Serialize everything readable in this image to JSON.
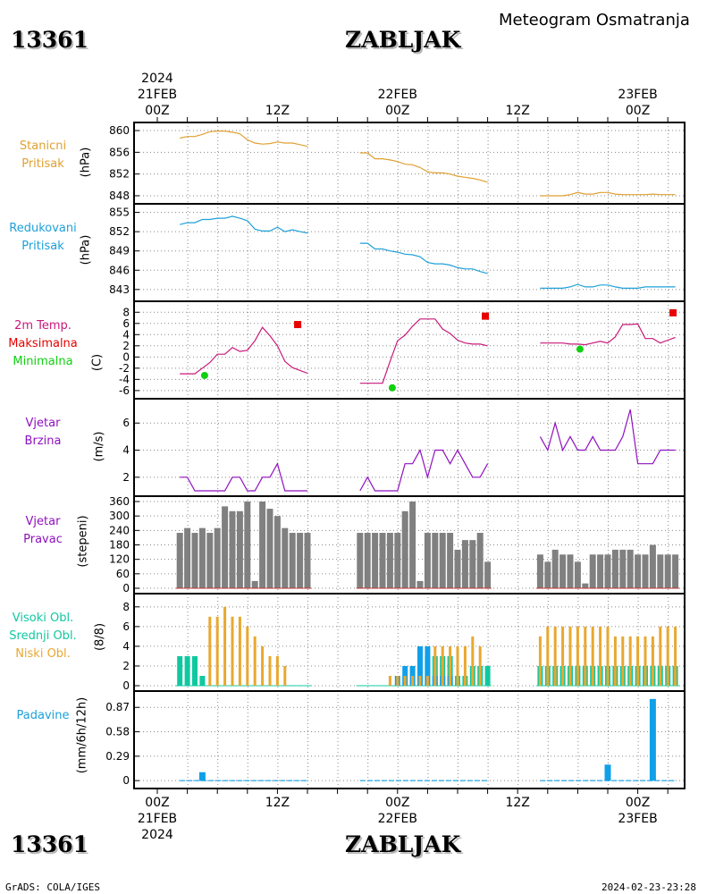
{
  "header": {
    "station_id": "13361",
    "station_name": "ZABLJAK",
    "subtitle": "Meteogram Osmatranja",
    "year": "2024"
  },
  "footer": {
    "left": "GrADS: COLA/IGES",
    "right": "2024-02-23-23:28"
  },
  "time_axis": {
    "top_dates": [
      "21FEB",
      "22FEB",
      "23FEB"
    ],
    "hour_labels": [
      "00Z",
      "12Z",
      "00Z",
      "12Z",
      "00Z",
      "12Z"
    ],
    "bottom_dates": [
      "21FEB",
      "22FEB",
      "23FEB"
    ]
  },
  "colors": {
    "pressure_station": "#e0a030",
    "pressure_reduced": "#1ea0d8",
    "temperature": "#c8187a",
    "temp_max": "#e80000",
    "temp_min": "#10d010",
    "wind": "#9010c0",
    "wind_dir_bar": "#808080",
    "high_cloud": "#10c8a0",
    "mid_cloud": "#10a0e8",
    "low_cloud": "#e8a830",
    "precip": "#10a0e8"
  },
  "panels": {
    "station_pressure": {
      "label1": "Stanicni",
      "label2": "Pritisak",
      "unit": "(hPa)"
    },
    "reduced_pressure": {
      "label1": "Redukovani",
      "label2": "Pritisak",
      "unit": "(hPa)"
    },
    "temperature": {
      "label1": "2m Temp.",
      "label2": "Maksimalna",
      "label3": "Minimalna",
      "unit": "(C)"
    },
    "wind_speed": {
      "label1": "Vjetar",
      "label2": "Brzina",
      "unit": "(m/s)"
    },
    "wind_direction": {
      "label1": "Vjetar",
      "label2": "Pravac",
      "unit": "(stepeni)"
    },
    "clouds": {
      "label1": "Visoki Obl.",
      "label2": "Srednji Obl.",
      "label3": "Niski Obl.",
      "unit": "(8/8)"
    },
    "precipitation": {
      "label1": "Padavine",
      "unit": "(mm/6h/12h)"
    }
  },
  "chart_data": [
    {
      "type": "line",
      "name": "station_pressure",
      "ylim": [
        847.5,
        860.5
      ],
      "yticks": [
        848,
        852,
        856,
        860
      ],
      "series": [
        {
          "x": [
            3,
            4,
            5,
            6,
            7,
            8,
            9,
            10,
            11,
            12,
            13,
            14,
            15,
            16,
            17,
            18,
            19,
            20
          ],
          "y": [
            858.6,
            858.9,
            858.9,
            859.3,
            859.8,
            859.9,
            859.9,
            859.7,
            859.4,
            858.3,
            857.7,
            857.5,
            857.6,
            857.9,
            857.7,
            857.7,
            857.4,
            857.1
          ]
        },
        {
          "x": [
            27,
            28,
            29,
            30,
            31,
            32,
            33,
            34,
            35,
            36,
            37,
            38,
            39,
            40,
            41,
            42,
            43,
            44
          ],
          "y": [
            855.9,
            855.9,
            854.8,
            854.8,
            854.6,
            854.3,
            853.8,
            853.7,
            853.2,
            852.4,
            852.2,
            852.2,
            852.0,
            851.6,
            851.4,
            851.2,
            850.9,
            850.5
          ]
        },
        {
          "x": [
            51,
            52,
            53,
            54,
            55,
            56,
            57,
            58,
            59,
            60,
            61,
            62,
            63,
            64,
            65,
            66,
            67,
            68,
            69
          ],
          "y": [
            848.0,
            848.0,
            848.0,
            848.0,
            848.2,
            848.6,
            848.3,
            848.3,
            848.6,
            848.6,
            848.3,
            848.2,
            848.2,
            848.2,
            848.2,
            848.3,
            848.2,
            848.2,
            848.2
          ]
        }
      ]
    },
    {
      "type": "line",
      "name": "reduced_pressure",
      "ylim": [
        842,
        855.5
      ],
      "yticks": [
        843,
        846,
        849,
        852,
        855
      ],
      "series": [
        {
          "x": [
            3,
            4,
            5,
            6,
            7,
            8,
            9,
            10,
            11,
            12,
            13,
            14,
            15,
            16,
            17,
            18,
            19,
            20
          ],
          "y": [
            853.1,
            853.4,
            853.4,
            853.9,
            853.9,
            854.1,
            854.1,
            854.4,
            854.1,
            853.7,
            852.4,
            852.1,
            852.1,
            852.7,
            852.0,
            852.3,
            852.0,
            851.8
          ]
        },
        {
          "x": [
            27,
            28,
            29,
            30,
            31,
            32,
            33,
            34,
            35,
            36,
            37,
            38,
            39,
            40,
            41,
            42,
            43,
            44
          ],
          "y": [
            850.2,
            850.2,
            849.3,
            849.3,
            849.0,
            848.8,
            848.5,
            848.4,
            848.1,
            847.2,
            847.0,
            847.0,
            846.8,
            846.4,
            846.2,
            846.2,
            845.8,
            845.5
          ]
        },
        {
          "x": [
            51,
            52,
            53,
            54,
            55,
            56,
            57,
            58,
            59,
            60,
            61,
            62,
            63,
            64,
            65,
            66,
            67,
            68,
            69
          ],
          "y": [
            843.2,
            843.2,
            843.2,
            843.2,
            843.4,
            843.8,
            843.4,
            843.4,
            843.7,
            843.7,
            843.4,
            843.2,
            843.2,
            843.2,
            843.4,
            843.4,
            843.4,
            843.4,
            843.4
          ]
        }
      ]
    },
    {
      "type": "line",
      "name": "temperature",
      "ylim": [
        -6.5,
        9
      ],
      "yticks": [
        -6,
        -4,
        -2,
        0,
        2,
        4,
        6,
        8
      ],
      "series": [
        {
          "name": "temp",
          "x": [
            3,
            4,
            5,
            6,
            7,
            8,
            9,
            10,
            11,
            12,
            13,
            14,
            15,
            16,
            17,
            18,
            19,
            20
          ],
          "y": [
            -3.0,
            -3.0,
            -3.0,
            -2.0,
            -1.0,
            0.5,
            0.5,
            1.7,
            1.0,
            1.2,
            2.9,
            5.3,
            3.8,
            2.0,
            -0.8,
            -1.9,
            -2.4,
            -2.9
          ]
        },
        {
          "name": "temp",
          "x": [
            27,
            28,
            29,
            30,
            31,
            32,
            33,
            34,
            35,
            36,
            37,
            38,
            39,
            40,
            41,
            42,
            43,
            44
          ],
          "y": [
            -4.7,
            -4.7,
            -4.7,
            -4.7,
            -0.8,
            2.9,
            3.9,
            5.5,
            6.8,
            6.8,
            6.8,
            5.0,
            4.2,
            3.0,
            2.5,
            2.3,
            2.3,
            2.0
          ]
        },
        {
          "name": "temp",
          "x": [
            51,
            52,
            53,
            54,
            55,
            56,
            57,
            58,
            59,
            60,
            61,
            62,
            63,
            64,
            65,
            66,
            67,
            68,
            69
          ],
          "y": [
            2.5,
            2.5,
            2.5,
            2.5,
            2.3,
            2.3,
            2.2,
            2.5,
            2.8,
            2.5,
            3.6,
            5.8,
            5.8,
            5.9,
            3.3,
            3.3,
            2.5,
            3.0,
            3.5
          ]
        }
      ],
      "max_points": [
        {
          "x": 18.7,
          "y": 5.8
        },
        {
          "x": 43.7,
          "y": 7.3
        },
        {
          "x": 68.7,
          "y": 7.9
        }
      ],
      "min_points": [
        {
          "x": 6.3,
          "y": -3.3
        },
        {
          "x": 31.3,
          "y": -5.5
        },
        {
          "x": 56.3,
          "y": 1.4
        }
      ]
    },
    {
      "type": "line",
      "name": "wind_speed",
      "ylim": [
        1,
        7.4
      ],
      "yticks": [
        2,
        4,
        6
      ],
      "series": [
        {
          "x": [
            3,
            4,
            5,
            6,
            7,
            8,
            9,
            10,
            11,
            12,
            13,
            14,
            15,
            16,
            17,
            18,
            19,
            20
          ],
          "y": [
            2,
            2,
            1,
            1,
            1,
            1,
            1,
            2,
            2,
            1,
            1,
            2,
            2,
            3,
            1,
            1,
            1,
            1
          ]
        },
        {
          "x": [
            27,
            28,
            29,
            30,
            31,
            32,
            33,
            34,
            35,
            36,
            37,
            38,
            39,
            40,
            41,
            42,
            43,
            44
          ],
          "y": [
            1,
            2,
            1,
            1,
            1,
            1,
            3,
            3,
            4,
            2,
            4,
            4,
            3,
            4,
            3,
            2,
            2,
            3
          ]
        },
        {
          "x": [
            51,
            52,
            53,
            54,
            55,
            56,
            57,
            58,
            59,
            60,
            61,
            62,
            63,
            64,
            65,
            66,
            67,
            68,
            69
          ],
          "y": [
            5,
            4,
            6,
            4,
            5,
            4,
            4,
            5,
            4,
            4,
            4,
            5,
            7,
            3,
            3,
            3,
            4,
            4,
            4
          ]
        }
      ]
    },
    {
      "type": "bar",
      "name": "wind_direction",
      "ylim": [
        0,
        360
      ],
      "yticks": [
        0,
        60,
        120,
        180,
        240,
        300,
        360
      ],
      "x": [
        3,
        4,
        5,
        6,
        7,
        8,
        9,
        10,
        11,
        12,
        13,
        14,
        15,
        16,
        17,
        18,
        19,
        20,
        27,
        28,
        29,
        30,
        31,
        32,
        33,
        34,
        35,
        36,
        37,
        38,
        39,
        40,
        41,
        42,
        43,
        44,
        51,
        52,
        53,
        54,
        55,
        56,
        57,
        58,
        59,
        60,
        61,
        62,
        63,
        64,
        65,
        66,
        67,
        68,
        69
      ],
      "values": [
        230,
        250,
        230,
        250,
        230,
        250,
        340,
        320,
        320,
        360,
        30,
        360,
        330,
        300,
        250,
        230,
        230,
        230,
        230,
        230,
        230,
        230,
        230,
        230,
        320,
        360,
        30,
        230,
        230,
        230,
        230,
        160,
        200,
        200,
        230,
        110,
        140,
        110,
        160,
        140,
        140,
        110,
        20,
        140,
        140,
        140,
        160,
        160,
        160,
        140,
        140,
        180,
        140,
        140,
        140
      ]
    },
    {
      "type": "bar",
      "name": "clouds",
      "ylim": [
        0,
        8.8
      ],
      "yticks": [
        0,
        2,
        4,
        6,
        8
      ],
      "x": [
        3,
        4,
        5,
        6,
        7,
        8,
        9,
        10,
        11,
        12,
        13,
        14,
        15,
        16,
        17,
        18,
        19,
        20,
        27,
        28,
        29,
        30,
        31,
        32,
        33,
        34,
        35,
        36,
        37,
        38,
        39,
        40,
        41,
        42,
        43,
        44,
        51,
        52,
        53,
        54,
        55,
        56,
        57,
        58,
        59,
        60,
        61,
        62,
        63,
        64,
        65,
        66,
        67,
        68,
        69
      ],
      "series": [
        {
          "name": "Visoki Obl.",
          "values": [
            3,
            3,
            3,
            1,
            0,
            0,
            0,
            0,
            0,
            0,
            0,
            0,
            0,
            0,
            0,
            0,
            0,
            0,
            0,
            0,
            0,
            0,
            0,
            0,
            0,
            0,
            3,
            3,
            3,
            3,
            3,
            1,
            1,
            2,
            2,
            2,
            2,
            2,
            2,
            2,
            2,
            2,
            2,
            2,
            2,
            2,
            2,
            2,
            2,
            2,
            2,
            2,
            2,
            2,
            2
          ]
        },
        {
          "name": "Srednji Obl.",
          "values": [
            0,
            0,
            0,
            0,
            0,
            0,
            0,
            0,
            0,
            0,
            0,
            0,
            0,
            0,
            0,
            0,
            0,
            0,
            0,
            0,
            0,
            0,
            0,
            1,
            2,
            2,
            4,
            4,
            1,
            1,
            1,
            0,
            0,
            0,
            0,
            0,
            0,
            0,
            0,
            0,
            0,
            0,
            0,
            0,
            0,
            0,
            0,
            0,
            0,
            0,
            0,
            0,
            0,
            0,
            0
          ]
        },
        {
          "name": "Niski Obl.",
          "values": [
            0,
            0,
            0,
            0,
            7,
            7,
            8,
            7,
            7,
            6,
            5,
            4,
            3,
            3,
            2,
            0,
            0,
            0,
            0,
            0,
            0,
            0,
            1,
            1,
            1,
            1,
            1,
            1,
            4,
            4,
            4,
            4,
            4,
            5,
            4,
            0,
            5,
            6,
            6,
            6,
            6,
            6,
            6,
            6,
            6,
            6,
            5,
            5,
            5,
            5,
            5,
            5,
            6,
            6,
            6
          ]
        }
      ]
    },
    {
      "type": "bar",
      "name": "precipitation",
      "ylim": [
        -0.03,
        1.0
      ],
      "yticks": [
        0,
        0.29,
        0.58,
        0.87
      ],
      "ytick_labels": [
        "0",
        "0.29",
        "0.58",
        "0.87"
      ],
      "x": [
        6,
        60,
        66
      ],
      "values": [
        0.1,
        0.19,
        0.97
      ]
    }
  ]
}
